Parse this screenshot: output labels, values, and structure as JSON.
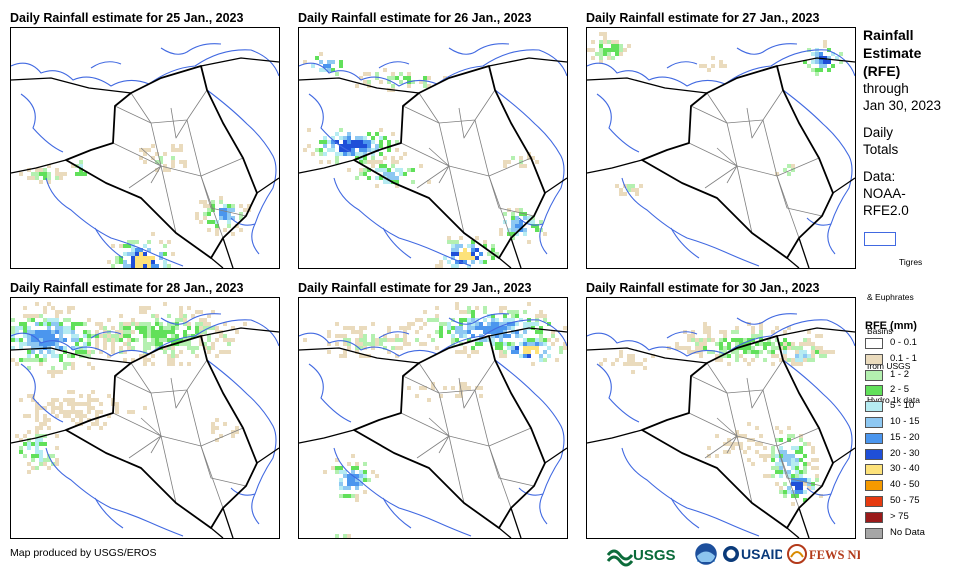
{
  "panels": [
    {
      "title": "Daily Rainfall estimate for 25 Jan., 2023"
    },
    {
      "title": "Daily Rainfall estimate for 26 Jan., 2023"
    },
    {
      "title": "Daily Rainfall estimate for 27 Jan., 2023"
    },
    {
      "title": "Daily Rainfall estimate for 28 Jan., 2023"
    },
    {
      "title": "Daily Rainfall estimate for 29 Jan., 2023"
    },
    {
      "title": "Daily Rainfall estimate for 30 Jan., 2023"
    }
  ],
  "sidebar": {
    "title_lines": [
      "Rainfall",
      "Estimate",
      "(RFE)"
    ],
    "through_lines": [
      "through",
      "Jan 30, 2023"
    ],
    "totals_lines": [
      "Daily",
      "Totals"
    ],
    "data_lines": [
      "Data:",
      "NOAA-",
      "RFE2.0"
    ],
    "basin_legend_lines": [
      "Tigres",
      "& Euphrates",
      "Basins",
      "from USGS",
      "Hydro 1k data"
    ],
    "rfe_title": "RFE (mm)"
  },
  "legend": [
    {
      "label": "0 - 0.1",
      "color": "#ffffff"
    },
    {
      "label": "0.1 - 1",
      "color": "#eadbbd"
    },
    {
      "label": "1 - 2",
      "color": "#b4f0b0"
    },
    {
      "label": "2 - 5",
      "color": "#61e05a"
    },
    {
      "label": "5 - 10",
      "color": "#b6ecf2"
    },
    {
      "label": "10 - 15",
      "color": "#8ec8f2"
    },
    {
      "label": "15 - 20",
      "color": "#4b96ee"
    },
    {
      "label": "20 - 30",
      "color": "#1f4fd8"
    },
    {
      "label": "30 - 40",
      "color": "#fde27a"
    },
    {
      "label": "40 - 50",
      "color": "#f59a00"
    },
    {
      "label": "50 - 75",
      "color": "#e63a10"
    },
    {
      "label": "> 75",
      "color": "#9a1a1a"
    },
    {
      "label": "No Data",
      "color": "#a6a6a6"
    }
  ],
  "credit": "Map produced by USGS/EROS",
  "logos": [
    {
      "name": "usgs-logo",
      "text": "USGS"
    },
    {
      "name": "noaa-logo",
      "text": "NOAA"
    },
    {
      "name": "usaid-logo",
      "text": "USAID"
    },
    {
      "name": "fewsnet-logo",
      "text": "FEWS NET"
    }
  ],
  "colors": {
    "basin_outline": "#4169e1",
    "country_border": "#000000",
    "province_border": "#808080"
  }
}
